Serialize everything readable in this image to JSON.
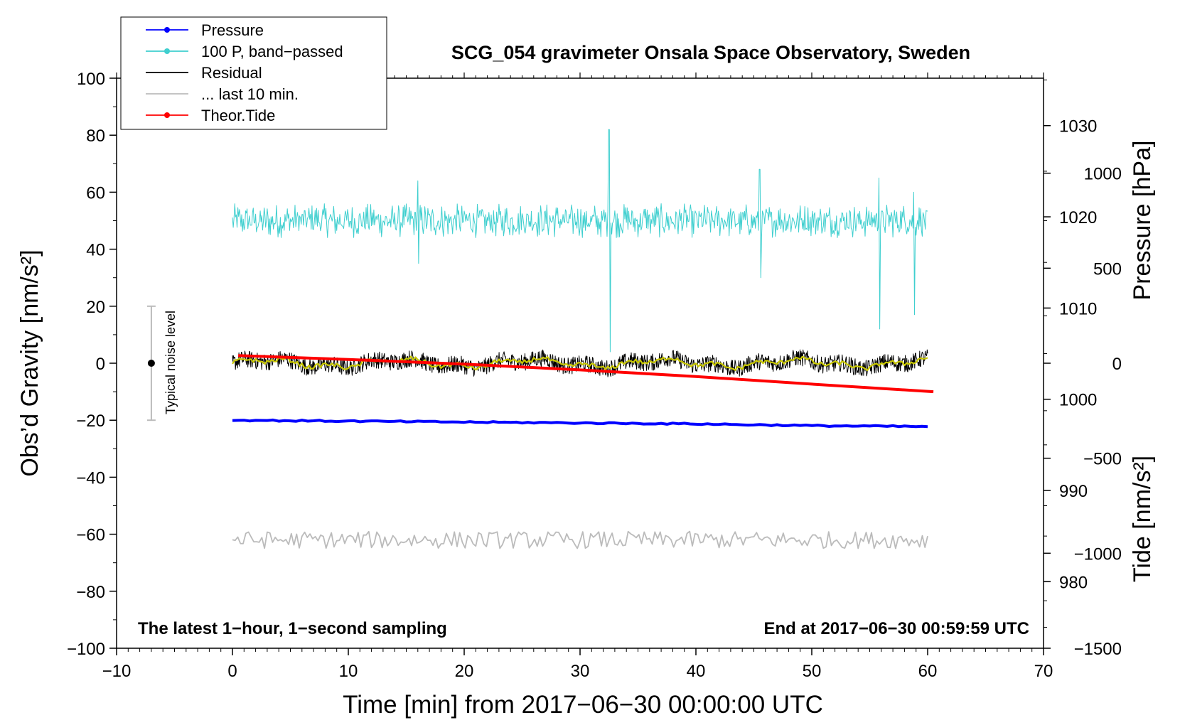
{
  "chart_data": {
    "type": "line",
    "title": "SCG_054 gravimeter Onsala Space Observatory, Sweden",
    "xlabel": "Time [min] from 2017−06−30 00:00:00 UTC",
    "ylabel_left": "Obs’d Gravity [nm/s²]",
    "ylabel_right_pressure": "Pressure [hPa]",
    "ylabel_right_tide": "Tide [nm/s²]",
    "xlim": [
      -10,
      70
    ],
    "ylim": [
      -100,
      100
    ],
    "pressure_lim": [
      972.7,
      1035.2
    ],
    "tide_lim": [
      -1500,
      1500
    ],
    "x_ticks": [
      "−10",
      "0",
      "10",
      "20",
      "30",
      "40",
      "50",
      "60",
      "70"
    ],
    "x_tick_values": [
      -10,
      0,
      10,
      20,
      30,
      40,
      50,
      60,
      70
    ],
    "y_ticks": [
      "100",
      "80",
      "60",
      "40",
      "20",
      "0",
      "−20",
      "−40",
      "−60",
      "−80",
      "−100"
    ],
    "y_tick_values": [
      100,
      80,
      60,
      40,
      20,
      0,
      -20,
      -40,
      -60,
      -80,
      -100
    ],
    "pressure_ticks": [
      "1030",
      "1020",
      "1010",
      "1000",
      "990",
      "980"
    ],
    "pressure_tick_values": [
      1030,
      1020,
      1010,
      1000,
      990,
      980
    ],
    "tide_ticks": [
      "1000",
      "500",
      "0",
      "−500",
      "−1000",
      "−1500"
    ],
    "tide_tick_values": [
      1000,
      500,
      0,
      -500,
      -1000,
      -1500
    ],
    "legend": [
      {
        "label": "Pressure",
        "color": "#0000ff",
        "marker": true
      },
      {
        "label": "100 P, band−passed",
        "color": "#3fcfcf",
        "marker": true
      },
      {
        "label": "Residual",
        "color": "#000000",
        "marker": false
      },
      {
        "label": "... last 10 min.",
        "color": "#bbbbbb",
        "marker": false
      },
      {
        "label": "Theor.Tide",
        "color": "#ff0000",
        "marker": true
      }
    ],
    "legend_position": "top-left",
    "annotations": {
      "bottom_left": "The latest 1−hour, 1−second sampling",
      "bottom_right": "End at 2017−06−30 00:59:59 UTC",
      "noise_label": "Typical noise level"
    },
    "noise_bar": {
      "x": -7,
      "center": 0,
      "low": -20,
      "high": 20
    },
    "series": [
      {
        "name": "Pressure",
        "axis": "pressure",
        "color": "#0000ff",
        "x": [
          0,
          10,
          20,
          30,
          40,
          50,
          60
        ],
        "values": [
          997.7,
          997.6,
          997.5,
          997.4,
          997.3,
          997.1,
          997.0
        ]
      },
      {
        "name": "100 P, band−passed",
        "axis": "left",
        "color": "#3fcfcf",
        "x_range": [
          0,
          60
        ],
        "mean": 50,
        "amplitude": 6,
        "spikes": [
          {
            "x": 32.5,
            "low": 4,
            "high": 82
          },
          {
            "x": 55.8,
            "low": 12,
            "high": 65
          },
          {
            "x": 58.8,
            "low": 17,
            "high": 60
          },
          {
            "x": 45.5,
            "low": 30,
            "high": 68
          },
          {
            "x": 16,
            "low": 35,
            "high": 64
          }
        ]
      },
      {
        "name": "Residual",
        "axis": "left",
        "color": "#000000",
        "x_range": [
          0,
          60
        ],
        "mean": 0,
        "amplitude": 3
      },
      {
        "name": "Residual (smoothed)",
        "axis": "left",
        "color": "#c8c800",
        "x_range": [
          0,
          60
        ],
        "mean": 0,
        "amplitude": 1.5
      },
      {
        "name": "... last 10 min.",
        "axis": "left",
        "color": "#bbbbbb",
        "x_range": [
          0,
          60
        ],
        "mean": -62,
        "amplitude": 3
      },
      {
        "name": "Theor.Tide",
        "axis": "tide",
        "color": "#ff0000",
        "x": [
          0.5,
          10,
          20,
          30,
          40,
          50,
          60.5
        ],
        "values": [
          40,
          20,
          -5,
          -35,
          -70,
          -110,
          -150
        ]
      }
    ]
  }
}
